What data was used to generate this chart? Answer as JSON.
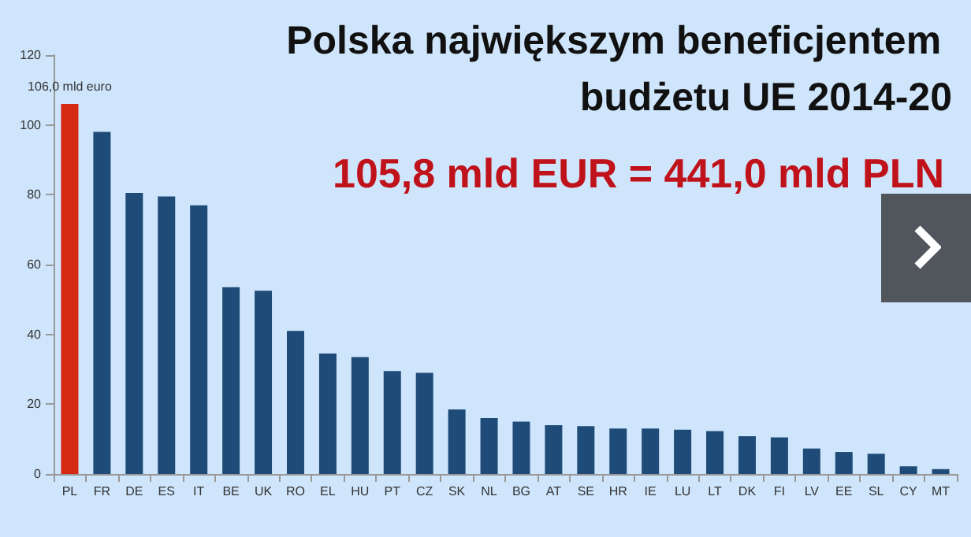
{
  "chart_data": {
    "type": "bar",
    "title": "Polska największym beneficjentem budżetu UE 2014-20",
    "subtitle": "105,8 mld EUR = 441,0 mld PLN",
    "categories": [
      "PL",
      "FR",
      "DE",
      "ES",
      "IT",
      "BE",
      "UK",
      "RO",
      "EL",
      "HU",
      "PT",
      "CZ",
      "SK",
      "NL",
      "BG",
      "AT",
      "SE",
      "HR",
      "IE",
      "LU",
      "LT",
      "DK",
      "FI",
      "LV",
      "EE",
      "SL",
      "CY",
      "MT"
    ],
    "values": [
      106.0,
      98,
      80.5,
      79.5,
      77,
      53.5,
      52.5,
      41,
      34.5,
      33.5,
      29.5,
      29,
      18.5,
      16,
      15,
      14,
      13.7,
      13,
      13,
      12.7,
      12.3,
      10.8,
      10.5,
      7.3,
      6.3,
      5.8,
      2.2,
      1.4
    ],
    "colors": [
      "#d42a12",
      "#1f4b78",
      "#1f4b78",
      "#1f4b78",
      "#1f4b78",
      "#1f4b78",
      "#1f4b78",
      "#1f4b78",
      "#1f4b78",
      "#1f4b78",
      "#1f4b78",
      "#1f4b78",
      "#1f4b78",
      "#1f4b78",
      "#1f4b78",
      "#1f4b78",
      "#1f4b78",
      "#1f4b78",
      "#1f4b78",
      "#1f4b78",
      "#1f4b78",
      "#1f4b78",
      "#1f4b78",
      "#1f4b78",
      "#1f4b78",
      "#1f4b78",
      "#1f4b78",
      "#1f4b78"
    ],
    "value_labels": [
      "106,0 mld euro",
      null,
      null,
      null,
      null,
      null,
      null,
      null,
      null,
      null,
      null,
      null,
      null,
      null,
      null,
      null,
      null,
      null,
      null,
      null,
      null,
      null,
      null,
      null,
      null,
      null,
      null,
      null
    ],
    "ylim": [
      0,
      120
    ],
    "yticks": [
      0,
      20,
      40,
      60,
      80,
      100,
      120
    ],
    "grid": false
  }
}
